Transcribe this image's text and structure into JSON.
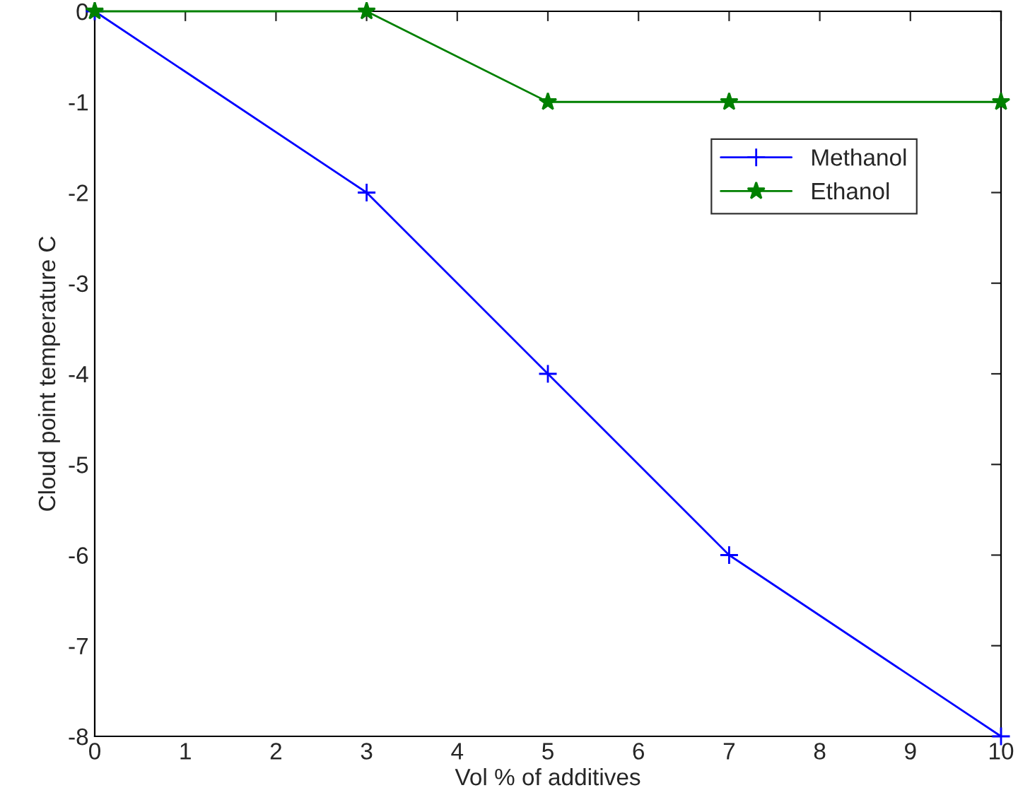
{
  "chart_data": {
    "type": "line",
    "xlabel": "Vol % of additives",
    "ylabel": "Cloud point temperature C",
    "x": [
      0,
      3,
      5,
      7,
      10
    ],
    "series": [
      {
        "name": "Methanol",
        "color": "#0000ff",
        "values": [
          0,
          -2,
          -4,
          -6,
          -8
        ],
        "marker": "cross"
      },
      {
        "name": "Ethanol",
        "color": "#008000",
        "values": [
          0,
          0,
          -1,
          -1,
          -1
        ],
        "marker": "star"
      }
    ],
    "xlim": [
      0,
      10
    ],
    "xticks": [
      0,
      1,
      2,
      3,
      4,
      5,
      6,
      7,
      8,
      9,
      10
    ],
    "ylim": [
      -8,
      0
    ],
    "yticks": [
      -8,
      -7,
      -6,
      -5,
      -4,
      -3,
      -2,
      -1,
      0
    ],
    "grid": false,
    "legend": "top right",
    "line_style": "solid"
  }
}
